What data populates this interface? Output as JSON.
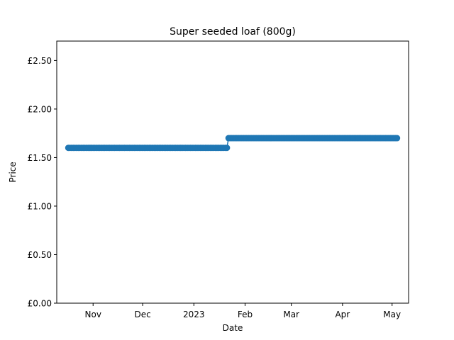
{
  "chart_data": {
    "type": "line",
    "title": "Super seeded loaf (800g)",
    "xlabel": "Date",
    "ylabel": "Price",
    "y_ticks": [
      "£0.00",
      "£0.50",
      "£1.00",
      "£1.50",
      "£2.00",
      "£2.50"
    ],
    "y_tick_values": [
      0,
      0.5,
      1.0,
      1.5,
      2.0,
      2.5
    ],
    "ylim": [
      0,
      2.7
    ],
    "xlim": [
      "2022-10-10",
      "2023-05-11"
    ],
    "x_ticks": [
      {
        "date": "2022-11-01",
        "label": "Nov"
      },
      {
        "date": "2022-12-01",
        "label": "Dec"
      },
      {
        "date": "2023-01-01",
        "label": "2023"
      },
      {
        "date": "2023-02-01",
        "label": "Feb"
      },
      {
        "date": "2023-03-01",
        "label": "Mar"
      },
      {
        "date": "2023-04-01",
        "label": "Apr"
      },
      {
        "date": "2023-05-01",
        "label": "May"
      }
    ],
    "grid": false,
    "legend": false,
    "color": "#1f77b4",
    "marker": "circle",
    "series": [
      {
        "segments": [
          {
            "start": "2022-10-17",
            "end": "2023-01-21",
            "value": 1.6
          },
          {
            "start": "2023-01-22",
            "end": "2023-05-04",
            "value": 1.7
          }
        ]
      }
    ]
  }
}
